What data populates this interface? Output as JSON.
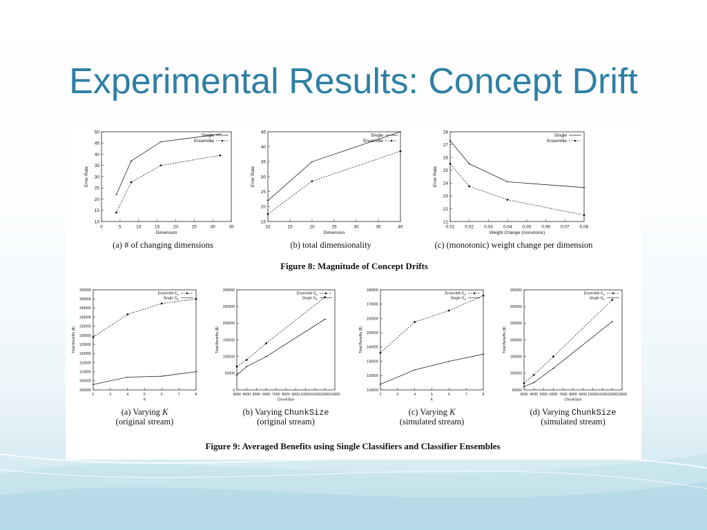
{
  "slide": {
    "title": "Experimental Results: Concept Drift"
  },
  "figure8": {
    "caption": "Figure 8: Magnitude of Concept Drifts"
  },
  "figure9": {
    "caption": "Figure 9: Averaged Benefits using Single Classifiers and Classifier Ensembles"
  },
  "chart_data": [
    {
      "id": "f8a",
      "type": "line",
      "caption_parts": [
        "(a) # of changing dimensions"
      ],
      "xlabel": "Dimension",
      "ylabel": "Error Rate",
      "xlim": [
        0,
        35
      ],
      "ylim": [
        10,
        50
      ],
      "xticks": [
        0,
        5,
        10,
        15,
        20,
        25,
        30,
        35
      ],
      "yticks": [
        10,
        15,
        20,
        25,
        30,
        35,
        40,
        45,
        50
      ],
      "legend_pos": "top-right",
      "series": [
        {
          "name": "Single",
          "style": "solid",
          "x": [
            4,
            8,
            16,
            32
          ],
          "y": [
            22,
            37,
            45.5,
            49
          ]
        },
        {
          "name": "Ensemble",
          "style": "dashed",
          "x": [
            4,
            8,
            16,
            32
          ],
          "y": [
            14,
            27.5,
            35,
            39.5
          ]
        }
      ]
    },
    {
      "id": "f8b",
      "type": "line",
      "caption_parts": [
        "(b) total dimensionality"
      ],
      "xlabel": "Dimension",
      "ylabel": "Error Rate",
      "xlim": [
        10,
        40
      ],
      "ylim": [
        15,
        45
      ],
      "xticks": [
        10,
        15,
        20,
        25,
        30,
        35,
        40
      ],
      "yticks": [
        15,
        20,
        25,
        30,
        35,
        40,
        45
      ],
      "legend_pos": "top-right",
      "series": [
        {
          "name": "Single",
          "style": "solid",
          "x": [
            10,
            20,
            40
          ],
          "y": [
            22,
            35,
            45
          ]
        },
        {
          "name": "Ensemble",
          "style": "dashed",
          "x": [
            10,
            20,
            40
          ],
          "y": [
            17.5,
            28.5,
            38.5
          ]
        }
      ]
    },
    {
      "id": "f8c",
      "type": "line",
      "caption_parts": [
        "(c) (monotonic) weight change per dimension"
      ],
      "xlabel": "Weight Change (monotonic)",
      "ylabel": "Error Rate",
      "xlim": [
        0.01,
        0.08
      ],
      "ylim": [
        21,
        28
      ],
      "xticks": [
        "0.01",
        "0.02",
        "0.03",
        "0.04",
        "0.05",
        "0.06",
        "0.07",
        "0.08"
      ],
      "yticks": [
        21,
        22,
        23,
        24,
        25,
        26,
        27,
        28
      ],
      "legend_pos": "top-right",
      "series": [
        {
          "name": "Single",
          "style": "solid",
          "x": [
            0.01,
            0.02,
            0.04,
            0.08
          ],
          "y": [
            27.3,
            25.5,
            24.1,
            23.65
          ]
        },
        {
          "name": "Ensemble",
          "style": "dashed",
          "x": [
            0.01,
            0.02,
            0.04,
            0.08
          ],
          "y": [
            25.5,
            23.75,
            22.7,
            21.5
          ]
        }
      ]
    },
    {
      "id": "f9a",
      "type": "line",
      "caption_parts": [
        "(a) Varying ",
        "K",
        "(original stream)"
      ],
      "xlabel": "K",
      "ylabel": "Total Benefits ($)",
      "xlim": [
        2,
        8
      ],
      "ylim": [
        100000,
        155000
      ],
      "xticks": [
        2,
        3,
        4,
        5,
        6,
        7,
        8
      ],
      "yticks": [
        100000,
        105000,
        110000,
        115000,
        120000,
        125000,
        130000,
        135000,
        140000,
        145000,
        150000,
        155000
      ],
      "legend_pos": "top-right",
      "series": [
        {
          "name": "Ensemble E",
          "sub": "K",
          "style": "dashed",
          "x": [
            2,
            4,
            6,
            8
          ],
          "y": [
            129000,
            141500,
            147500,
            150000
          ]
        },
        {
          "name": "Single G",
          "sub": "K",
          "style": "solid",
          "x": [
            2,
            4,
            6,
            8
          ],
          "y": [
            103000,
            107000,
            107500,
            110000
          ]
        }
      ]
    },
    {
      "id": "f9b",
      "type": "line",
      "caption_parts": [
        "(b) Varying ",
        "ChunkSize",
        "(original stream)"
      ],
      "xlabel": "ChunkSize",
      "ylabel": "Total Benefits ($)",
      "xlim": [
        3000,
        13000
      ],
      "ylim": [
        0,
        300000
      ],
      "xticks": [
        "3000",
        "4000",
        "5000",
        "6000",
        "7000",
        "8000",
        "9000",
        "10000",
        "11000",
        "12000",
        "13000"
      ],
      "yticks": [
        0,
        50000,
        100000,
        150000,
        200000,
        250000,
        300000
      ],
      "legend_pos": "top-right",
      "series": [
        {
          "name": "Ensemble E",
          "sub": "K",
          "style": "dashed",
          "x": [
            3000,
            4000,
            6000,
            12000
          ],
          "y": [
            70000,
            90000,
            140000,
            278000
          ]
        },
        {
          "name": "Single G",
          "sub": "K",
          "style": "solid",
          "x": [
            3000,
            4000,
            6000,
            12000
          ],
          "y": [
            45000,
            70000,
            100000,
            212000
          ]
        }
      ]
    },
    {
      "id": "f9c",
      "type": "line",
      "caption_parts": [
        "(c) Varying ",
        "K",
        "(simulated stream)"
      ],
      "xlabel": "K",
      "ylabel": "Total Benefits ($)",
      "xlim": [
        2,
        8
      ],
      "ylim": [
        110000,
        180000
      ],
      "xticks": [
        2,
        3,
        4,
        5,
        6,
        7,
        8
      ],
      "yticks": [
        110000,
        120000,
        130000,
        140000,
        150000,
        160000,
        170000,
        180000
      ],
      "legend_pos": "top-right",
      "series": [
        {
          "name": "Ensemble E",
          "sub": "K",
          "style": "dashed",
          "x": [
            2,
            4,
            6,
            8
          ],
          "y": [
            136000,
            157500,
            165500,
            176000
          ]
        },
        {
          "name": "Single G",
          "sub": "K",
          "style": "solid",
          "x": [
            2,
            4,
            6,
            8
          ],
          "y": [
            114000,
            124000,
            130000,
            135000
          ]
        }
      ]
    },
    {
      "id": "f9d",
      "type": "line",
      "caption_parts": [
        "(d) Varying ",
        "ChunkSize",
        "(simulated stream)"
      ],
      "xlabel": "ChunkSize",
      "ylabel": "Total Benefits ($)",
      "xlim": [
        3000,
        13000
      ],
      "ylim": [
        50000,
        350000
      ],
      "xticks": [
        "3000",
        "4000",
        "5000",
        "6000",
        "7000",
        "8000",
        "9000",
        "10000",
        "11000",
        "12000",
        "13000"
      ],
      "yticks": [
        50000,
        100000,
        150000,
        200000,
        250000,
        300000,
        350000
      ],
      "legend_pos": "top-right",
      "series": [
        {
          "name": "Ensemble E",
          "sub": "K",
          "style": "dashed",
          "x": [
            3000,
            4000,
            6000,
            12000
          ],
          "y": [
            70000,
            95000,
            150000,
            320000
          ]
        },
        {
          "name": "Single G",
          "sub": "K",
          "style": "solid",
          "x": [
            3000,
            4000,
            6000,
            12000
          ],
          "y": [
            60000,
            72000,
            115000,
            255000
          ]
        }
      ]
    }
  ]
}
